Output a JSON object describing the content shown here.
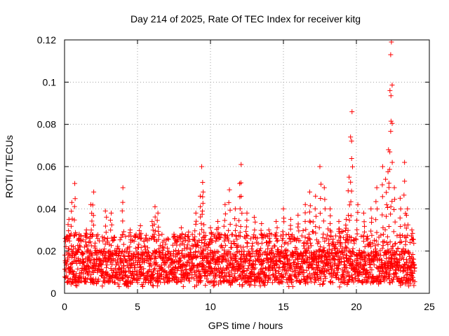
{
  "chart_data": {
    "type": "scatter",
    "title": "Day 214 of 2025, Rate Of TEC Index for receiver kitg",
    "xlabel": "GPS time / hours",
    "ylabel": "ROTI / TECUs",
    "xlim": [
      0,
      25
    ],
    "ylim": [
      0,
      0.12
    ],
    "xticks": [
      0,
      5,
      10,
      15,
      20,
      25
    ],
    "xtick_labels": [
      "0",
      "5",
      "10",
      "15",
      "20",
      "25"
    ],
    "yticks": [
      0,
      0.02,
      0.04,
      0.06,
      0.08,
      0.1,
      0.12
    ],
    "ytick_labels": [
      "0",
      "0.02",
      "0.04",
      "0.06",
      "0.08",
      "0.1",
      "0.12"
    ],
    "grid": true,
    "marker": "+",
    "color": "#ff0000",
    "x_range_of_data": [
      0,
      24
    ],
    "typical_band": [
      0.005,
      0.02
    ],
    "series": [
      {
        "name": "ROTI",
        "points": [
          [
            0.3,
            0.035
          ],
          [
            0.5,
            0.043
          ],
          [
            0.7,
            0.052
          ],
          [
            1.0,
            0.028
          ],
          [
            1.5,
            0.03
          ],
          [
            1.8,
            0.042
          ],
          [
            2.0,
            0.048
          ],
          [
            2.8,
            0.039
          ],
          [
            3.2,
            0.038
          ],
          [
            4.0,
            0.05
          ],
          [
            4.5,
            0.03
          ],
          [
            5.2,
            0.032
          ],
          [
            6.0,
            0.034
          ],
          [
            6.2,
            0.041
          ],
          [
            6.4,
            0.038
          ],
          [
            7.5,
            0.028
          ],
          [
            8.0,
            0.031
          ],
          [
            8.5,
            0.029
          ],
          [
            9.0,
            0.038
          ],
          [
            9.3,
            0.046
          ],
          [
            9.4,
            0.06
          ],
          [
            9.5,
            0.048
          ],
          [
            10.0,
            0.031
          ],
          [
            10.5,
            0.034
          ],
          [
            11.0,
            0.042
          ],
          [
            11.3,
            0.049
          ],
          [
            11.7,
            0.04
          ],
          [
            12.0,
            0.052
          ],
          [
            12.1,
            0.061
          ],
          [
            12.5,
            0.038
          ],
          [
            13.0,
            0.036
          ],
          [
            13.5,
            0.033
          ],
          [
            14.0,
            0.03
          ],
          [
            14.5,
            0.034
          ],
          [
            15.0,
            0.04
          ],
          [
            15.5,
            0.035
          ],
          [
            16.0,
            0.037
          ],
          [
            16.5,
            0.042
          ],
          [
            16.8,
            0.048
          ],
          [
            17.2,
            0.046
          ],
          [
            17.5,
            0.06
          ],
          [
            17.8,
            0.05
          ],
          [
            18.2,
            0.04
          ],
          [
            18.8,
            0.034
          ],
          [
            19.3,
            0.035
          ],
          [
            19.5,
            0.055
          ],
          [
            19.6,
            0.074
          ],
          [
            19.7,
            0.086
          ],
          [
            20.1,
            0.042
          ],
          [
            20.5,
            0.038
          ],
          [
            21.0,
            0.04
          ],
          [
            21.4,
            0.05
          ],
          [
            21.8,
            0.06
          ],
          [
            22.0,
            0.054
          ],
          [
            22.2,
            0.068
          ],
          [
            22.3,
            0.096
          ],
          [
            22.35,
            0.113
          ],
          [
            22.4,
            0.119
          ],
          [
            22.6,
            0.05
          ],
          [
            23.0,
            0.045
          ],
          [
            23.3,
            0.062
          ],
          [
            23.5,
            0.04
          ],
          [
            23.8,
            0.03
          ]
        ]
      }
    ]
  }
}
